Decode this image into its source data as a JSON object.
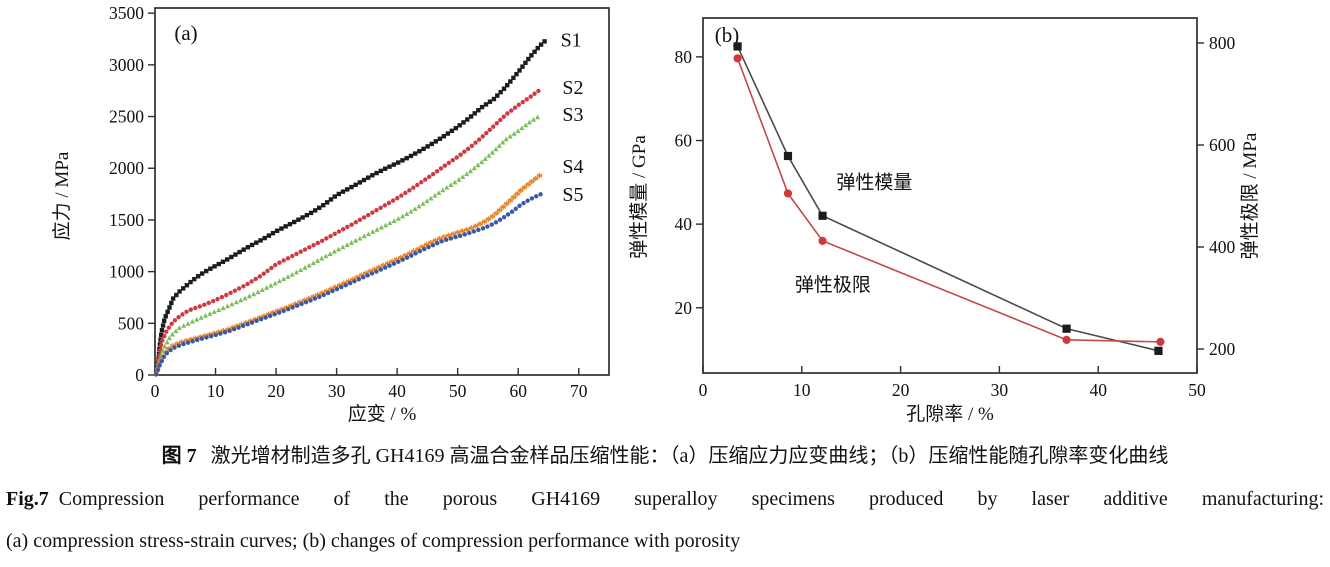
{
  "figure": {
    "caption_cn_label": "图 7",
    "caption_cn_text": "激光增材制造多孔 GH4169 高温合金样品压缩性能：（a）压缩应力应变曲线；（b）压缩性能随孔隙率变化曲线",
    "caption_en_label": "Fig.7",
    "caption_en_text": "Compression performance of the porous GH4169 superalloy specimens produced by laser additive manufacturing:",
    "caption_en_line2": "(a) compression stress-strain curves; (b) changes of compression performance with porosity"
  },
  "chart_data": [
    {
      "id": "a",
      "type": "scatter",
      "panel_label": "(a)",
      "xlabel": "应变 / %",
      "ylabel": "应力 / MPa",
      "xlim": [
        0,
        75
      ],
      "ylim": [
        0,
        3550
      ],
      "xticks": [
        0,
        10,
        20,
        30,
        40,
        50,
        60,
        70
      ],
      "yticks": [
        0,
        500,
        1000,
        1500,
        2000,
        2500,
        3000,
        3500
      ],
      "grid": false,
      "series": [
        {
          "name": "S1",
          "marker": "square",
          "color": "#1c1c1c",
          "points": [
            [
              0.2,
              20
            ],
            [
              0.5,
              110
            ],
            [
              0.8,
              290
            ],
            [
              1.1,
              420
            ],
            [
              1.6,
              545
            ],
            [
              2.3,
              640
            ],
            [
              3,
              740
            ],
            [
              4,
              805
            ],
            [
              5,
              855
            ],
            [
              6,
              905
            ],
            [
              7,
              950
            ],
            [
              8,
              990
            ],
            [
              9.5,
              1040
            ],
            [
              12,
              1120
            ],
            [
              15,
              1225
            ],
            [
              18,
              1320
            ],
            [
              20,
              1390
            ],
            [
              23,
              1480
            ],
            [
              26,
              1575
            ],
            [
              28,
              1650
            ],
            [
              30,
              1740
            ],
            [
              33,
              1835
            ],
            [
              36,
              1935
            ],
            [
              38,
              1995
            ],
            [
              40,
              2050
            ],
            [
              42,
              2110
            ],
            [
              44,
              2175
            ],
            [
              46,
              2245
            ],
            [
              48,
              2320
            ],
            [
              50,
              2400
            ],
            [
              52,
              2490
            ],
            [
              54,
              2590
            ],
            [
              56,
              2670
            ],
            [
              58,
              2790
            ],
            [
              60,
              2930
            ],
            [
              62,
              3080
            ],
            [
              63.5,
              3180
            ],
            [
              64.5,
              3235
            ]
          ]
        },
        {
          "name": "S2",
          "marker": "circle",
          "color": "#cf3a3e",
          "points": [
            [
              0.2,
              15
            ],
            [
              0.6,
              140
            ],
            [
              1.1,
              320
            ],
            [
              2,
              435
            ],
            [
              3,
              515
            ],
            [
              4,
              565
            ],
            [
              5,
              605
            ],
            [
              6,
              635
            ],
            [
              7.5,
              665
            ],
            [
              9.6,
              715
            ],
            [
              12,
              780
            ],
            [
              15,
              870
            ],
            [
              17.5,
              960
            ],
            [
              20,
              1070
            ],
            [
              22.5,
              1145
            ],
            [
              25,
              1220
            ],
            [
              27.5,
              1295
            ],
            [
              30,
              1375
            ],
            [
              32.5,
              1455
            ],
            [
              35,
              1540
            ],
            [
              37.5,
              1625
            ],
            [
              40,
              1710
            ],
            [
              42,
              1785
            ],
            [
              44,
              1865
            ],
            [
              46,
              1945
            ],
            [
              48,
              2030
            ],
            [
              50,
              2110
            ],
            [
              52,
              2200
            ],
            [
              54,
              2300
            ],
            [
              56,
              2410
            ],
            [
              58,
              2520
            ],
            [
              60,
              2610
            ],
            [
              62,
              2690
            ],
            [
              63.5,
              2755
            ]
          ]
        },
        {
          "name": "S3",
          "marker": "triangle",
          "color": "#7abf56",
          "points": [
            [
              0.2,
              10
            ],
            [
              0.7,
              130
            ],
            [
              1.3,
              240
            ],
            [
              2.5,
              370
            ],
            [
              4,
              455
            ],
            [
              6.3,
              520
            ],
            [
              9,
              590
            ],
            [
              12,
              665
            ],
            [
              15,
              745
            ],
            [
              17.5,
              815
            ],
            [
              20,
              890
            ],
            [
              22.5,
              965
            ],
            [
              25,
              1045
            ],
            [
              27.5,
              1125
            ],
            [
              30,
              1205
            ],
            [
              32.5,
              1280
            ],
            [
              35,
              1355
            ],
            [
              37.5,
              1430
            ],
            [
              40,
              1505
            ],
            [
              42,
              1570
            ],
            [
              44,
              1645
            ],
            [
              46,
              1725
            ],
            [
              48,
              1805
            ],
            [
              50,
              1880
            ],
            [
              52,
              1965
            ],
            [
              54,
              2060
            ],
            [
              56,
              2165
            ],
            [
              58,
              2280
            ],
            [
              60,
              2360
            ],
            [
              62,
              2450
            ],
            [
              63.8,
              2515
            ]
          ]
        },
        {
          "name": "S4",
          "marker": "star",
          "color": "#e6862e",
          "points": [
            [
              0.2,
              10
            ],
            [
              0.7,
              100
            ],
            [
              1.4,
              190
            ],
            [
              2,
              240
            ],
            [
              3,
              285
            ],
            [
              4,
              310
            ],
            [
              5,
              330
            ],
            [
              7,
              360
            ],
            [
              9.6,
              400
            ],
            [
              12,
              440
            ],
            [
              15,
              505
            ],
            [
              18,
              570
            ],
            [
              20,
              615
            ],
            [
              22.5,
              670
            ],
            [
              25,
              730
            ],
            [
              27.5,
              790
            ],
            [
              30,
              855
            ],
            [
              32.5,
              920
            ],
            [
              35,
              990
            ],
            [
              37.5,
              1055
            ],
            [
              40,
              1120
            ],
            [
              42,
              1175
            ],
            [
              44,
              1235
            ],
            [
              45.5,
              1280
            ],
            [
              47,
              1320
            ],
            [
              48.5,
              1350
            ],
            [
              50,
              1380
            ],
            [
              51.5,
              1405
            ],
            [
              53,
              1440
            ],
            [
              54.5,
              1485
            ],
            [
              56,
              1545
            ],
            [
              57.5,
              1625
            ],
            [
              59,
              1705
            ],
            [
              60.5,
              1790
            ],
            [
              62,
              1860
            ],
            [
              63.2,
              1915
            ],
            [
              64,
              1950
            ]
          ]
        },
        {
          "name": "S5",
          "marker": "circle",
          "color": "#3b57a5",
          "points": [
            [
              0.2,
              5
            ],
            [
              0.7,
              85
            ],
            [
              1.4,
              170
            ],
            [
              2,
              215
            ],
            [
              3,
              260
            ],
            [
              4,
              285
            ],
            [
              5,
              305
            ],
            [
              7,
              340
            ],
            [
              9.6,
              380
            ],
            [
              12,
              420
            ],
            [
              15,
              485
            ],
            [
              18,
              550
            ],
            [
              20,
              592
            ],
            [
              22.5,
              648
            ],
            [
              25,
              705
            ],
            [
              27.5,
              765
            ],
            [
              30,
              830
            ],
            [
              32.5,
              895
            ],
            [
              35,
              960
            ],
            [
              37.5,
              1025
            ],
            [
              40,
              1090
            ],
            [
              42,
              1145
            ],
            [
              44,
              1205
            ],
            [
              45.5,
              1245
            ],
            [
              47,
              1285
            ],
            [
              48.5,
              1315
            ],
            [
              50,
              1340
            ],
            [
              51.5,
              1365
            ],
            [
              53,
              1395
            ],
            [
              54.5,
              1425
            ],
            [
              56,
              1465
            ],
            [
              57.5,
              1520
            ],
            [
              59,
              1580
            ],
            [
              60.5,
              1650
            ],
            [
              62,
              1700
            ],
            [
              63.2,
              1735
            ],
            [
              64,
              1755
            ]
          ]
        }
      ],
      "series_labels": [
        {
          "text": "S1",
          "x": 67.0,
          "y": 3235
        },
        {
          "text": "S2",
          "x": 67.3,
          "y": 2775
        },
        {
          "text": "S3",
          "x": 67.3,
          "y": 2515
        },
        {
          "text": "S4",
          "x": 67.3,
          "y": 2010
        },
        {
          "text": "S5",
          "x": 67.3,
          "y": 1740
        }
      ]
    },
    {
      "id": "b",
      "type": "line",
      "panel_label": "(b)",
      "xlabel": "孔隙率 / %",
      "ylabel_left": "弹性模量 / GPa",
      "ylabel_right": "弹性极限 / MPa",
      "xlim": [
        0,
        50
      ],
      "ylim_left": [
        4.4,
        89.3
      ],
      "ylim_right": [
        153,
        849
      ],
      "xticks": [
        0,
        10,
        20,
        30,
        40,
        50
      ],
      "yticks_left": [
        20,
        40,
        60,
        80
      ],
      "yticks_right": [
        200,
        400,
        600,
        800
      ],
      "grid": false,
      "series": [
        {
          "name": "弹性模量",
          "axis": "left",
          "marker": "square",
          "marker_color": "#1c1c1c",
          "line_color": "#4a4a4a",
          "x": [
            3.5,
            8.6,
            12.1,
            36.8,
            46.1
          ],
          "y": [
            82.5,
            56.3,
            42.0,
            15.0,
            9.7
          ]
        },
        {
          "name": "弹性极限",
          "axis": "right",
          "marker": "circle",
          "marker_color": "#ce3a3c",
          "line_color": "#c4494b",
          "x": [
            3.5,
            8.6,
            12.1,
            36.8,
            46.3
          ],
          "y": [
            770,
            505,
            412,
            218,
            214
          ]
        }
      ],
      "annotations": [
        {
          "text": "弹性模量",
          "x": 13.5,
          "y_left": 50.0
        },
        {
          "text": "弹性极限",
          "x": 9.3,
          "y_left": 25.5
        }
      ]
    }
  ]
}
